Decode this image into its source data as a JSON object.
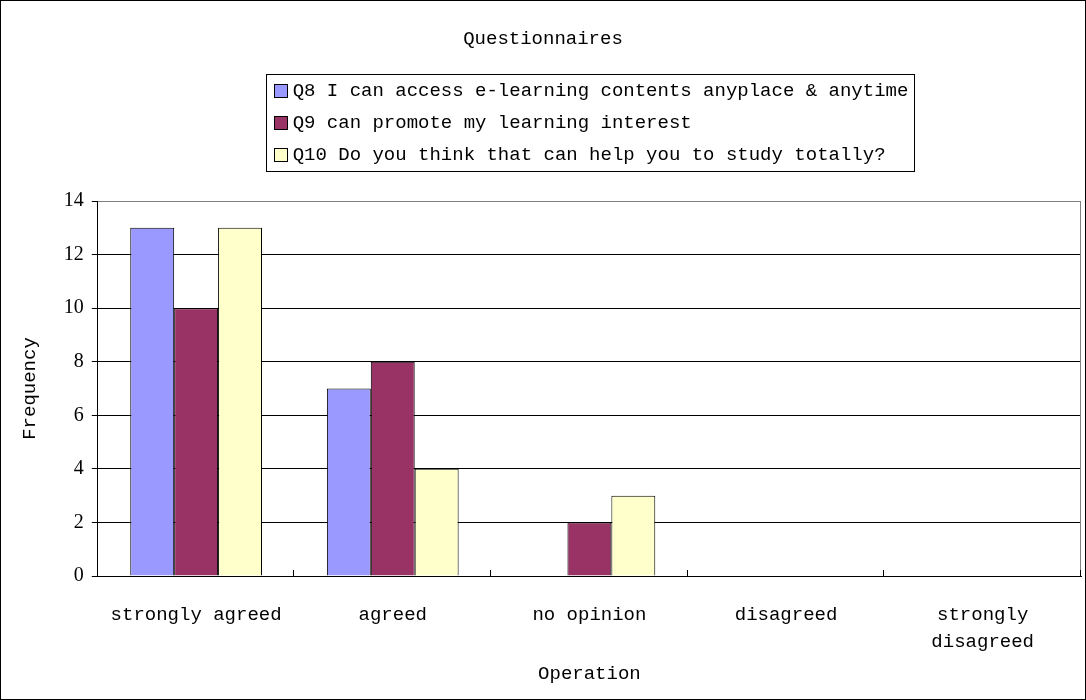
{
  "chart_data": {
    "type": "bar",
    "title": "Questionnaires",
    "xlabel": "Operation",
    "ylabel": "Frequency",
    "categories": [
      "strongly agreed",
      "agreed",
      "no opinion",
      "disagreed",
      "strongly disagreed"
    ],
    "series": [
      {
        "name": "Q8 I can access e-learning contents anyplace & anytime",
        "color": "#9999ff",
        "values": [
          13,
          7,
          0,
          0,
          0
        ]
      },
      {
        "name": "Q9 can promote my learning interest",
        "color": "#993366",
        "values": [
          10,
          8,
          2,
          0,
          0
        ]
      },
      {
        "name": "Q10 Do you think that can help you to study totally?",
        "color": "#ffffcc",
        "values": [
          13,
          4,
          3,
          0,
          0
        ]
      }
    ],
    "ylim": [
      0,
      14
    ],
    "yticks": [
      0,
      2,
      4,
      6,
      8,
      10,
      12,
      14
    ],
    "grid": "y",
    "legend": "top"
  }
}
